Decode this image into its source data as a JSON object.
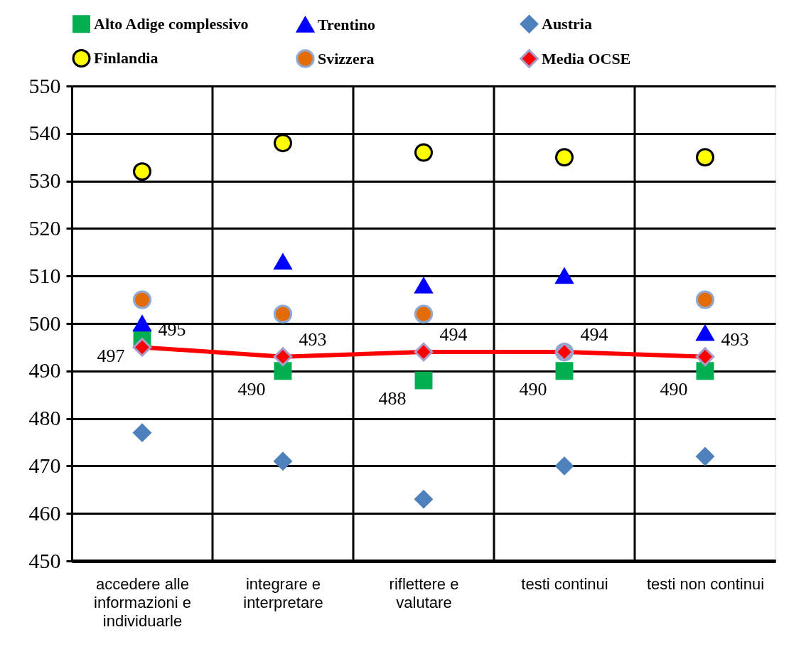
{
  "chart_data": {
    "type": "scatter",
    "categories": [
      "accedere alle informazioni e individuarle",
      "integrare e interpretare",
      "riflettere e valutare",
      "testi continui",
      "testi non continui"
    ],
    "ylim": [
      450,
      550
    ],
    "yticks": [
      450,
      460,
      470,
      480,
      490,
      500,
      510,
      520,
      530,
      540,
      550
    ],
    "grid": true,
    "legend": "top",
    "series": [
      {
        "name": "Alto Adige complessivo",
        "color": "#00b050",
        "marker": "square",
        "values": [
          497,
          490,
          488,
          490,
          490
        ],
        "value_labels": [
          "497",
          "490",
          "488",
          "490",
          "490"
        ]
      },
      {
        "name": "Trentino",
        "color": "#0000ff",
        "marker": "triangle",
        "values": [
          500,
          513,
          508,
          510,
          498
        ]
      },
      {
        "name": "Austria",
        "color": "#4f81bd",
        "marker": "diamond",
        "values": [
          477,
          471,
          463,
          470,
          472
        ]
      },
      {
        "name": "Finlandia",
        "color": "#ffff00",
        "marker": "circle",
        "values": [
          532,
          538,
          536,
          535,
          535
        ]
      },
      {
        "name": "Svizzera",
        "color": "#e36c09",
        "marker": "circle",
        "values": [
          505,
          502,
          502,
          494,
          505
        ]
      },
      {
        "name": "Media OCSE",
        "type": "line",
        "color": "#ff0000",
        "marker": "diamond",
        "values": [
          495,
          493,
          494,
          494,
          493
        ],
        "value_labels": [
          "495",
          "493",
          "494",
          "494",
          "493"
        ]
      }
    ]
  }
}
